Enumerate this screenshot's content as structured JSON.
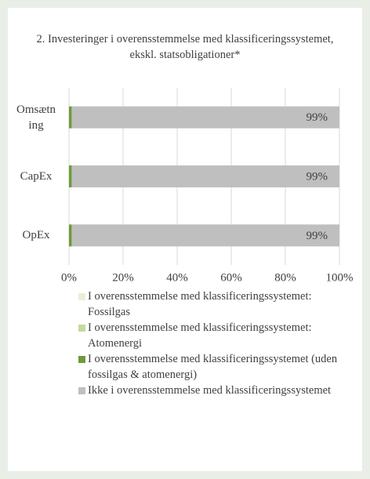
{
  "chart_data": {
    "type": "stacked_barh",
    "title": "2. Investeringer i overensstemmelse med klassificeringssystemet, ekskl. statsobligationer*",
    "categories": [
      "Omsætning",
      "CapEx",
      "OpEx"
    ],
    "series": [
      {
        "name": "I overensstemmelse med klassificeringssystemet: Fossilgas",
        "color": "#e8efd9",
        "values": [
          0,
          0,
          0
        ]
      },
      {
        "name": "I overensstemmelse med klassificeringssystemet: Atomenergi",
        "color": "#c4da9d",
        "values": [
          0,
          0,
          0
        ]
      },
      {
        "name": "I overensstemmelse med klassificeringssystemet (uden fossilgas & atomenergi)",
        "color": "#6e9a3a",
        "values": [
          1,
          1,
          1
        ],
        "value_labels": [
          "1%",
          "1%",
          "1%"
        ]
      },
      {
        "name": "Ikke i overensstemmelse med klassificeringssystemet",
        "color": "#bfbfbf",
        "values": [
          99,
          99,
          99
        ],
        "value_labels": [
          "99%",
          "99%",
          "99%"
        ]
      }
    ],
    "xlim": [
      0,
      100
    ],
    "xticks": [
      {
        "value": 0,
        "label": "0%"
      },
      {
        "value": 20,
        "label": "20%"
      },
      {
        "value": 40,
        "label": "40%"
      },
      {
        "value": 60,
        "label": "60%"
      },
      {
        "value": 80,
        "label": "80%"
      },
      {
        "value": 100,
        "label": "100%"
      }
    ],
    "grid": true
  }
}
